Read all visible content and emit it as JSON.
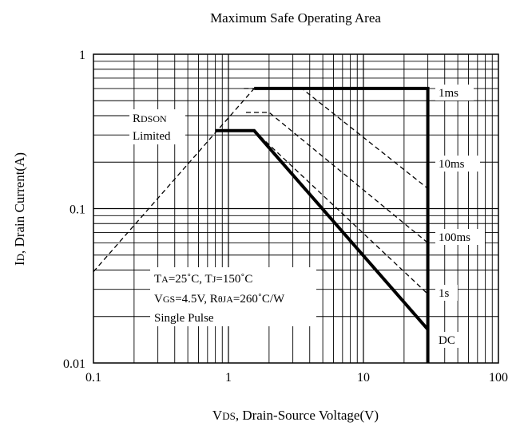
{
  "chart_data": {
    "type": "line",
    "title": "Maximum Safe Operating Area",
    "xlabel": "VDS, Drain-Source Voltage(V)",
    "xlabel_parts": {
      "main": "V",
      "sub": "DS",
      "rest": ", Drain-Source Voltage(V)"
    },
    "ylabel": "ID, Drain Current(A)",
    "ylabel_parts": {
      "main": "I",
      "sub": "D",
      "rest": ", Drain Current(A)"
    },
    "x_scale": "log",
    "y_scale": "log",
    "xlim": [
      0.1,
      100
    ],
    "ylim": [
      0.01,
      1
    ],
    "x_ticks": [
      0.1,
      1,
      10,
      100
    ],
    "x_tick_labels": [
      "0.1",
      "1",
      "10",
      "100"
    ],
    "y_ticks": [
      0.01,
      0.1,
      1
    ],
    "y_tick_labels": [
      "0.01",
      "0.1",
      "1"
    ],
    "grid": true,
    "series": [
      {
        "name": "1ms",
        "style": "solid-bold",
        "points": [
          [
            1.55,
            0.6
          ],
          [
            30,
            0.6
          ],
          [
            30,
            0.01
          ]
        ]
      },
      {
        "name": "10ms",
        "style": "dashed",
        "points": [
          [
            1.3,
            0.6
          ],
          [
            3.5,
            0.6
          ],
          [
            30,
            0.135
          ]
        ]
      },
      {
        "name": "100ms",
        "style": "dashed",
        "points": [
          [
            1.35,
            0.42
          ],
          [
            2.0,
            0.42
          ],
          [
            30,
            0.06
          ]
        ]
      },
      {
        "name": "1s",
        "style": "dashed",
        "points": [
          [
            1.55,
            0.32
          ],
          [
            30,
            0.028
          ]
        ]
      },
      {
        "name": "DC",
        "style": "solid-bold",
        "points": [
          [
            0.8,
            0.32
          ],
          [
            1.55,
            0.32
          ],
          [
            30,
            0.0165
          ]
        ]
      },
      {
        "name": "RDSON Limited",
        "style": "dashed",
        "points": [
          [
            0.1,
            0.039
          ],
          [
            1.55,
            0.6
          ]
        ]
      }
    ],
    "labels": {
      "rdson": {
        "main": "R",
        "sub": "DSON"
      },
      "limited": "Limited",
      "ms1": "1ms",
      "ms10": "10ms",
      "ms100": "100ms",
      "s1": "1s",
      "dc": "DC"
    },
    "conditions": {
      "line1": {
        "ta": "T",
        "ta_sub": "A",
        "ta_val": "=25˚C, T",
        "tj_sub": "J",
        "tj_val": "=150˚C"
      },
      "line2": {
        "v": "V",
        "v_sub": "GS",
        "v_val": "=4.5V, R",
        "r_sub": "θJA",
        "r_val": "=260˚C/W"
      },
      "line3": "Single Pulse"
    }
  }
}
